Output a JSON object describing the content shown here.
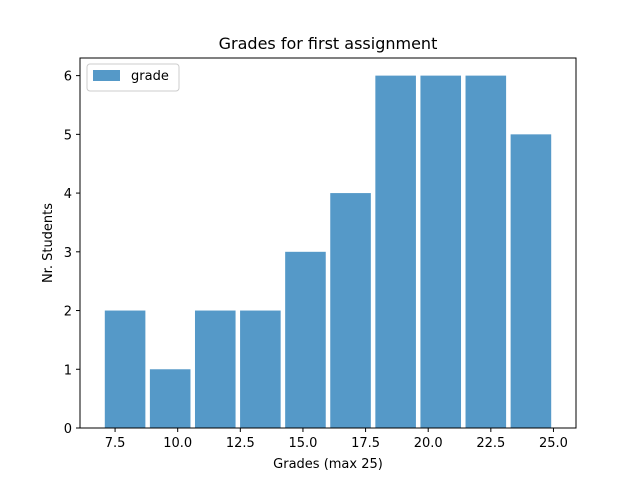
{
  "chart_data": {
    "type": "bar",
    "title": "Grades for first assignment",
    "xlabel": "Grades (max 25)",
    "ylabel": "Nr. Students",
    "legend": {
      "label": "grade",
      "placement": "top-left"
    },
    "bin_edges": [
      7.0,
      8.8,
      10.6,
      12.4,
      14.2,
      16.0,
      17.8,
      19.6,
      21.4,
      23.2,
      25.0
    ],
    "values": [
      2,
      1,
      2,
      2,
      3,
      4,
      6,
      6,
      6,
      5
    ],
    "xlim": [
      6.1,
      25.9
    ],
    "ylim": [
      0,
      6.3
    ],
    "xticks": [
      7.5,
      10.0,
      12.5,
      15.0,
      17.5,
      20.0,
      22.5,
      25.0
    ],
    "xtick_labels": [
      "7.5",
      "10.0",
      "12.5",
      "15.0",
      "17.5",
      "20.0",
      "22.5",
      "25.0"
    ],
    "yticks": [
      0,
      1,
      2,
      3,
      4,
      5,
      6
    ],
    "ytick_labels": [
      "0",
      "1",
      "2",
      "3",
      "4",
      "5",
      "6"
    ],
    "bar_color": "#5599c8",
    "grid": false
  }
}
